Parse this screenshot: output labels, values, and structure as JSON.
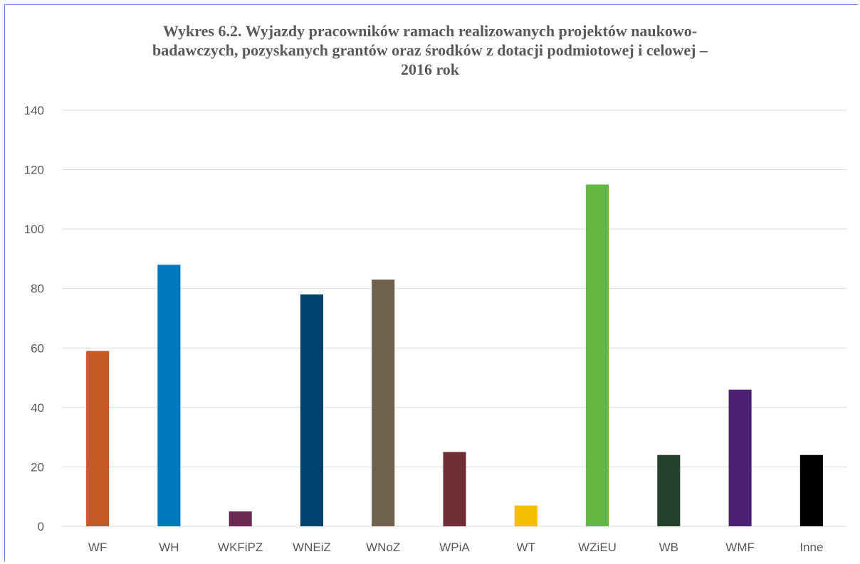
{
  "chart_data": {
    "type": "bar",
    "title_lines": [
      "Wykres  6.2. Wyjazdy pracowników ramach realizowanych projektów naukowo-",
      "badawczych, pozyskanych grantów oraz środków z dotacji podmiotowej i celowej –",
      "2016 rok"
    ],
    "categories": [
      "WF",
      "WH",
      "WKFiPZ",
      "WNEiZ",
      "WNoZ",
      "WPiA",
      "WT",
      "WZiEU",
      "WB",
      "WMF",
      "Inne"
    ],
    "values": [
      59,
      88,
      5,
      78,
      83,
      25,
      7,
      115,
      24,
      46,
      24
    ],
    "colors": [
      "#c55a26",
      "#0079c2",
      "#6a2a50",
      "#00416e",
      "#6e614d",
      "#6f2d36",
      "#f2bf00",
      "#62b641",
      "#25412c",
      "#4b2072",
      "#000000"
    ],
    "ylim": [
      0,
      140
    ],
    "yticks": [
      "0",
      "20",
      "40",
      "60",
      "80",
      "100",
      "120",
      "140"
    ],
    "grid": true,
    "gridline_color": "#d9d9d9",
    "legend": "none"
  }
}
